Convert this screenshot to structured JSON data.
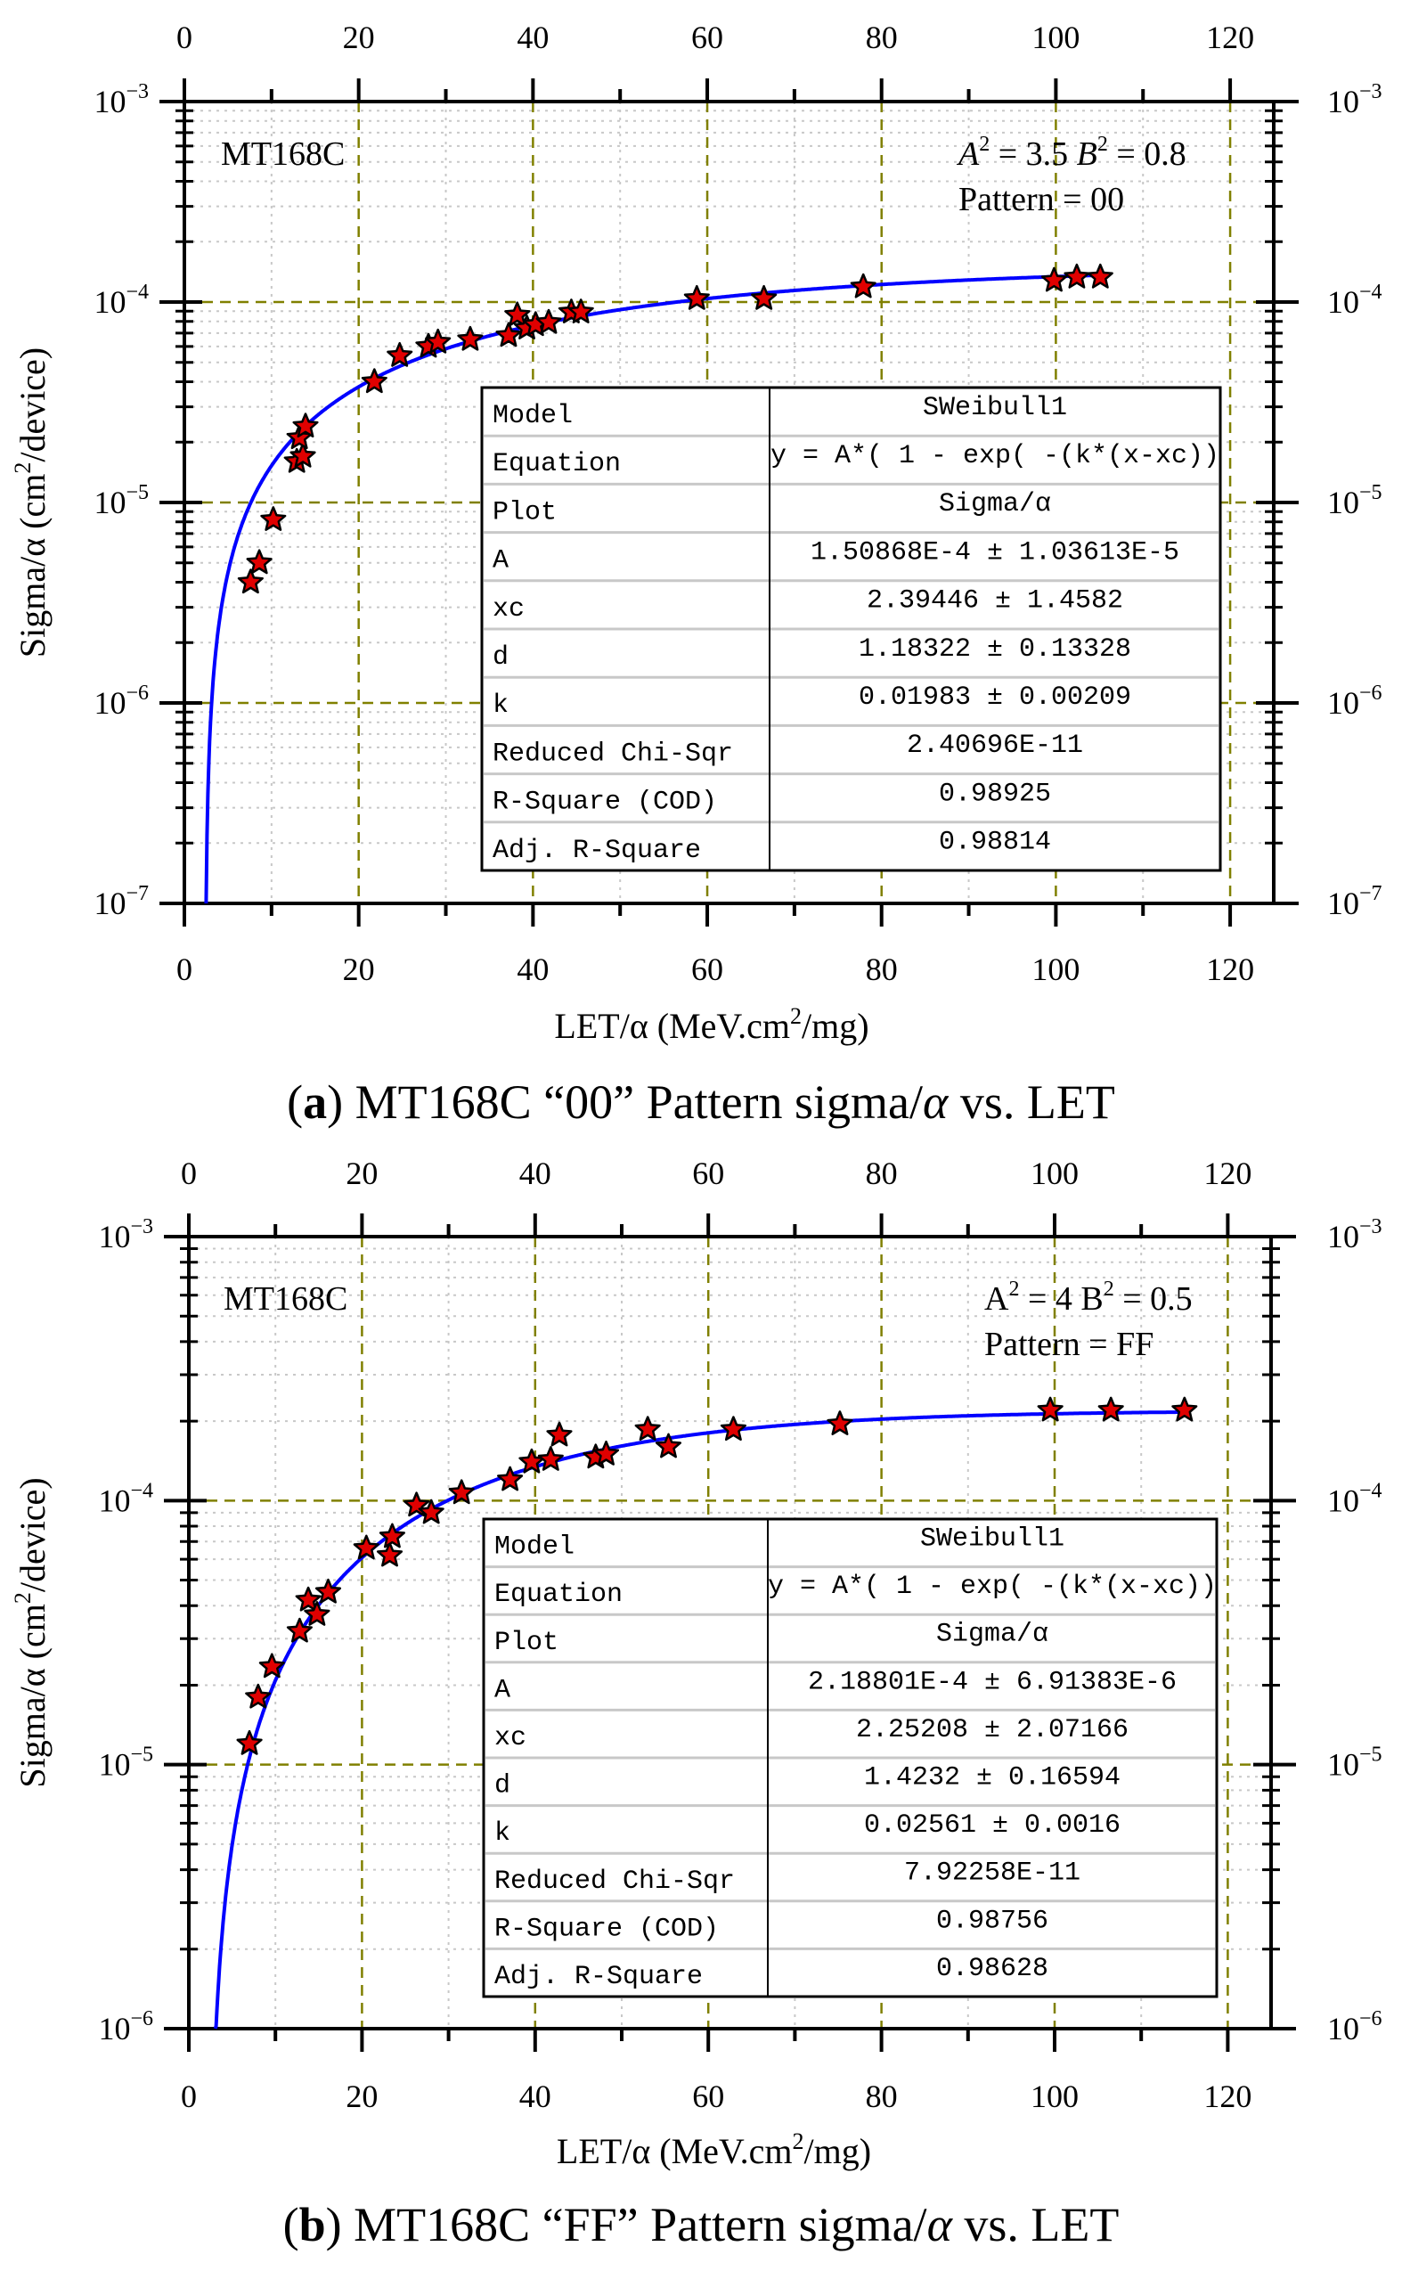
{
  "chart_data": [
    {
      "type": "scatter",
      "id": "a",
      "caption": {
        "open": "(",
        "letter": "a",
        "close": ")",
        "text": " MT168C “00” Pattern sigma/",
        "symbol": "α",
        "suffix": " vs. LET"
      },
      "xlabel": {
        "main": "LET/α (MeV.cm",
        "sup": "2",
        "end": "/mg)"
      },
      "ylabel": {
        "main": "Sigma/α (cm",
        "sup": "2",
        "end": "/device)"
      },
      "xlim": [
        0,
        125
      ],
      "ylim": [
        1e-07,
        0.001
      ],
      "yscale": "log",
      "x_ticks": [
        "0",
        "20",
        "40",
        "60",
        "80",
        "100",
        "120"
      ],
      "y_tick_base": "10",
      "y_tick_exponents": [
        "-3",
        "-4",
        "-5",
        "-6",
        "-7"
      ],
      "grid": true,
      "device_label": "MT168C",
      "annotation": {
        "a_label": "A",
        "a_sup": "2",
        "a_val": " = 3.5",
        "b_label": "B",
        "b_sup": "2",
        "b_val": " = 0.8",
        "pattern": "Pattern = 00"
      },
      "fit": {
        "A": 0.000150868,
        "xc": 2.39446,
        "d": 1.18322,
        "k": 0.01983,
        "x_end": 105.5,
        "color": "#0000ff"
      },
      "marker_color": "#e00000",
      "points": [
        [
          7.6,
          4e-06
        ],
        [
          8.6,
          5e-06
        ],
        [
          10.2,
          8.2e-06
        ],
        [
          12.9,
          1.6e-05
        ],
        [
          13.6,
          1.7e-05
        ],
        [
          13.2,
          2.1e-05
        ],
        [
          13.9,
          2.4e-05
        ],
        [
          21.8,
          4e-05
        ],
        [
          24.7,
          5.4e-05
        ],
        [
          28.0,
          6e-05
        ],
        [
          29.1,
          6.3e-05
        ],
        [
          32.8,
          6.5e-05
        ],
        [
          37.2,
          6.8e-05
        ],
        [
          38.2,
          8.6e-05
        ],
        [
          39.3,
          7.4e-05
        ],
        [
          40.3,
          7.7e-05
        ],
        [
          41.8,
          7.9e-05
        ],
        [
          44.4,
          8.9e-05
        ],
        [
          45.5,
          8.9e-05
        ],
        [
          58.8,
          0.000104
        ],
        [
          66.5,
          0.000104
        ],
        [
          77.9,
          0.000119
        ],
        [
          99.8,
          0.000128
        ],
        [
          102.4,
          0.000133
        ],
        [
          105.1,
          0.000133
        ]
      ],
      "table": [
        [
          "Model",
          "SWeibull1"
        ],
        [
          "Equation",
          "y = A*( 1 - exp( -(k*(x-xc))"
        ],
        [
          "Plot",
          "Sigma/α"
        ],
        [
          "A",
          "1.50868E-4 ± 1.03613E-5"
        ],
        [
          "xc",
          "2.39446 ± 1.4582"
        ],
        [
          "d",
          "1.18322 ± 0.13328"
        ],
        [
          "k",
          "0.01983 ± 0.00209"
        ],
        [
          "Reduced Chi-Sqr",
          "2.40696E-11"
        ],
        [
          "R-Square (COD)",
          "0.98925"
        ],
        [
          "Adj. R-Square",
          "0.98814"
        ]
      ]
    },
    {
      "type": "scatter",
      "id": "b",
      "caption": {
        "open": "(",
        "letter": "b",
        "close": ")",
        "text": " MT168C “FF” Pattern sigma/",
        "symbol": "α",
        "suffix": " vs. LET"
      },
      "xlabel": {
        "main": "LET/α (MeV.cm",
        "sup": "2",
        "end": "/mg)"
      },
      "ylabel": {
        "main": "Sigma/α (cm",
        "sup": "2",
        "end": "/device)"
      },
      "xlim": [
        0,
        125
      ],
      "ylim": [
        1e-06,
        0.001
      ],
      "yscale": "log",
      "x_ticks": [
        "0",
        "20",
        "40",
        "60",
        "80",
        "100",
        "120"
      ],
      "y_tick_base": "10",
      "y_tick_exponents": [
        "-3",
        "-4",
        "-5",
        "-6"
      ],
      "grid": true,
      "device_label": "MT168C",
      "annotation": {
        "a_label": "A",
        "a_sup": "2",
        "a_val": " = 4",
        "b_label": "B",
        "b_sup": "2",
        "b_val": " = 0.5",
        "pattern": "Pattern = FF"
      },
      "fit": {
        "A": 0.000218801,
        "xc": 2.25208,
        "d": 1.4232,
        "k": 0.02561,
        "x_end": 115.5,
        "color": "#0000ff"
      },
      "marker_color": "#e00000",
      "points": [
        [
          7.0,
          1.2e-05
        ],
        [
          8.0,
          1.8e-05
        ],
        [
          9.6,
          2.35e-05
        ],
        [
          12.8,
          3.2e-05
        ],
        [
          13.8,
          4.2e-05
        ],
        [
          14.8,
          3.7e-05
        ],
        [
          16.1,
          4.5e-05
        ],
        [
          20.5,
          6.6e-05
        ],
        [
          23.2,
          6.2e-05
        ],
        [
          23.5,
          7.3e-05
        ],
        [
          26.3,
          9.6e-05
        ],
        [
          28.0,
          9e-05
        ],
        [
          31.5,
          0.000107
        ],
        [
          37.1,
          0.00012
        ],
        [
          39.6,
          0.00014
        ],
        [
          41.8,
          0.000143
        ],
        [
          42.8,
          0.000177
        ],
        [
          47.0,
          0.000146
        ],
        [
          48.2,
          0.00015
        ],
        [
          53.0,
          0.000186
        ],
        [
          55.4,
          0.00016
        ],
        [
          62.9,
          0.000186
        ],
        [
          75.2,
          0.000195
        ],
        [
          99.5,
          0.00022
        ],
        [
          106.5,
          0.00022
        ],
        [
          115.0,
          0.00022
        ]
      ],
      "table": [
        [
          "Model",
          "SWeibull1"
        ],
        [
          "Equation",
          "y = A*( 1 - exp( -(k*(x-xc))"
        ],
        [
          "Plot",
          "Sigma/α"
        ],
        [
          "A",
          "2.18801E-4 ± 6.91383E-6"
        ],
        [
          "xc",
          "2.25208 ± 2.07166"
        ],
        [
          "d",
          "1.4232 ± 0.16594"
        ],
        [
          "k",
          "0.02561 ± 0.0016"
        ],
        [
          "Reduced Chi-Sqr",
          "7.92258E-11"
        ],
        [
          "R-Square (COD)",
          "0.98756"
        ],
        [
          "Adj. R-Square",
          "0.98628"
        ]
      ]
    }
  ]
}
